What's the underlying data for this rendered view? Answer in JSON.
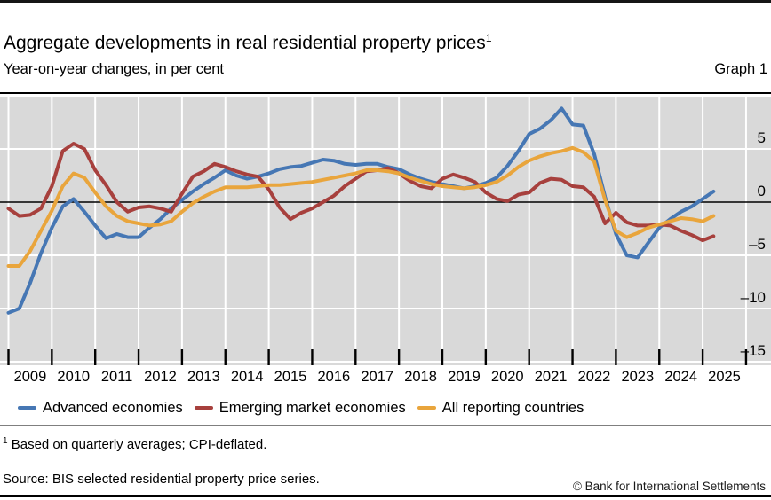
{
  "page": {
    "title": "Aggregate developments in real residential property prices",
    "title_footnote_marker": "1",
    "subtitle": "Year-on-year changes, in per cent",
    "graph_label": "Graph 1",
    "footnote_marker": "1",
    "footnote_text": "Based on quarterly averages; CPI-deflated.",
    "source": "Source: BIS selected residential property price series.",
    "copyright": "© Bank for International Settlements"
  },
  "colors": {
    "plot_background": "#d9d9d9",
    "gridline": "#ffffff",
    "zero_line": "#000000",
    "tick": "#000000",
    "advanced_economies": "#4677b4",
    "emerging_market_economies": "#a7403d",
    "all_reporting_countries": "#e9a53c"
  },
  "chart_data": {
    "type": "line",
    "title": "Aggregate developments in real residential property prices",
    "subtitle": "Year-on-year changes, in per cent",
    "frequency": "quarterly",
    "x_start": "2009-Q1",
    "x_end": "2025-Q2",
    "x_tick_labels": [
      "2009",
      "2010",
      "2011",
      "2012",
      "2013",
      "2014",
      "2015",
      "2016",
      "2017",
      "2018",
      "2019",
      "2020",
      "2021",
      "2022",
      "2023",
      "2024",
      "2025"
    ],
    "ylim": [
      -15.3,
      10
    ],
    "y_ticks": [
      5,
      0,
      -5,
      -10,
      -15
    ],
    "y_tick_labels": [
      "5",
      "0",
      "–5",
      "–10",
      "–15"
    ],
    "grid": true,
    "legend_position": "bottom",
    "zero_line": true,
    "series": [
      {
        "name": "Advanced economies",
        "color": "#4677b4",
        "values": [
          -10.4,
          -10.0,
          -7.6,
          -4.8,
          -2.4,
          -0.4,
          0.3,
          -0.9,
          -2.2,
          -3.4,
          -3.0,
          -3.3,
          -3.3,
          -2.4,
          -1.6,
          -0.6,
          0.2,
          1.0,
          1.7,
          2.3,
          3.0,
          2.5,
          2.2,
          2.4,
          2.7,
          3.1,
          3.3,
          3.4,
          3.7,
          4.0,
          3.9,
          3.6,
          3.5,
          3.6,
          3.6,
          3.3,
          3.1,
          2.6,
          2.2,
          1.9,
          1.7,
          1.5,
          1.3,
          1.5,
          1.8,
          2.3,
          3.4,
          4.8,
          6.4,
          6.9,
          7.7,
          8.8,
          7.3,
          7.2,
          4.5,
          0.5,
          -3.0,
          -5.0,
          -5.2,
          -3.8,
          -2.4,
          -1.6,
          -0.9,
          -0.4,
          0.3,
          1.0
        ]
      },
      {
        "name": "Emerging market economies",
        "color": "#a7403d",
        "values": [
          -0.6,
          -1.3,
          -1.2,
          -0.6,
          1.5,
          4.8,
          5.5,
          5.0,
          3.0,
          1.6,
          0.0,
          -0.9,
          -0.5,
          -0.4,
          -0.6,
          -0.9,
          0.8,
          2.4,
          2.9,
          3.6,
          3.3,
          2.9,
          2.6,
          2.4,
          1.2,
          -0.5,
          -1.6,
          -1.0,
          -0.6,
          0.0,
          0.6,
          1.5,
          2.2,
          2.9,
          3.0,
          3.2,
          2.7,
          2.0,
          1.5,
          1.3,
          2.2,
          2.6,
          2.3,
          1.9,
          0.9,
          0.3,
          0.1,
          0.7,
          0.9,
          1.8,
          2.2,
          2.1,
          1.5,
          1.4,
          0.5,
          -2.0,
          -1.0,
          -1.9,
          -2.2,
          -2.2,
          -2.1,
          -2.2,
          -2.7,
          -3.1,
          -3.6,
          -3.2
        ]
      },
      {
        "name": "All reporting countries",
        "color": "#e9a53c",
        "values": [
          -6.0,
          -6.0,
          -4.6,
          -2.7,
          -0.8,
          1.5,
          2.7,
          2.3,
          0.9,
          -0.4,
          -1.3,
          -1.8,
          -2.0,
          -2.2,
          -2.1,
          -1.8,
          -0.9,
          -0.1,
          0.5,
          1.0,
          1.4,
          1.4,
          1.4,
          1.5,
          1.6,
          1.6,
          1.7,
          1.8,
          1.9,
          2.1,
          2.3,
          2.5,
          2.7,
          3.0,
          3.0,
          2.9,
          2.7,
          2.3,
          2.0,
          1.7,
          1.5,
          1.4,
          1.3,
          1.4,
          1.6,
          1.9,
          2.5,
          3.3,
          3.9,
          4.3,
          4.6,
          4.8,
          5.1,
          4.7,
          3.8,
          0.2,
          -2.7,
          -3.3,
          -2.9,
          -2.4,
          -2.1,
          -1.8,
          -1.5,
          -1.6,
          -1.8,
          -1.3
        ]
      }
    ]
  }
}
